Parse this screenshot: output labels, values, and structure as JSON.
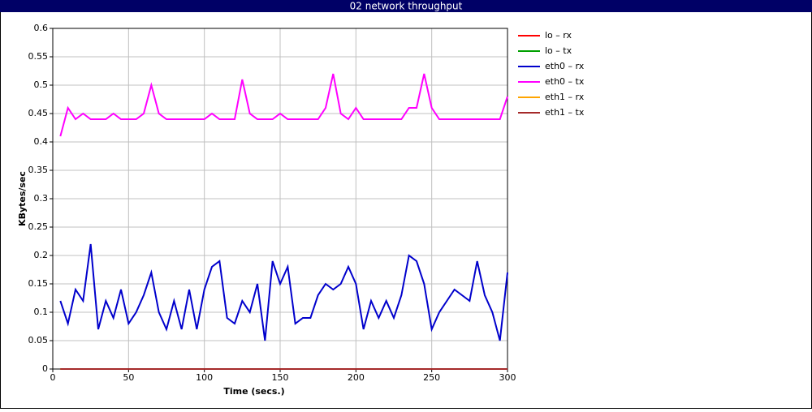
{
  "chart_data": {
    "type": "line",
    "title": "02 network throughput",
    "x_label": "Time (secs.)",
    "y_label": "KBytes/sec",
    "x": [
      5,
      10,
      15,
      20,
      25,
      30,
      35,
      40,
      45,
      50,
      55,
      60,
      65,
      70,
      75,
      80,
      85,
      90,
      95,
      100,
      105,
      110,
      115,
      120,
      125,
      130,
      135,
      140,
      145,
      150,
      155,
      160,
      165,
      170,
      175,
      180,
      185,
      190,
      195,
      200,
      205,
      210,
      215,
      220,
      225,
      230,
      235,
      240,
      245,
      250,
      255,
      260,
      265,
      270,
      275,
      280,
      285,
      290,
      295,
      300
    ],
    "xlim": [
      0,
      300
    ],
    "xticks": [
      0,
      50,
      100,
      150,
      200,
      250,
      300
    ],
    "ylim": [
      0,
      0.6
    ],
    "yticks": [
      0,
      0.05,
      0.1,
      0.15,
      0.2,
      0.25,
      0.3,
      0.35,
      0.4,
      0.45,
      0.5,
      0.55,
      0.6
    ],
    "grid": true,
    "series": [
      {
        "name": "lo – rx",
        "color": "#ff0000",
        "values": [
          0,
          0,
          0,
          0,
          0,
          0,
          0,
          0,
          0,
          0,
          0,
          0,
          0,
          0,
          0,
          0,
          0,
          0,
          0,
          0,
          0,
          0,
          0,
          0,
          0,
          0,
          0,
          0,
          0,
          0,
          0,
          0,
          0,
          0,
          0,
          0,
          0,
          0,
          0,
          0,
          0,
          0,
          0,
          0,
          0,
          0,
          0,
          0,
          0,
          0,
          0,
          0,
          0,
          0,
          0,
          0,
          0,
          0,
          0,
          0
        ]
      },
      {
        "name": "lo – tx",
        "color": "#00a000",
        "values": [
          0,
          0,
          0,
          0,
          0,
          0,
          0,
          0,
          0,
          0,
          0,
          0,
          0,
          0,
          0,
          0,
          0,
          0,
          0,
          0,
          0,
          0,
          0,
          0,
          0,
          0,
          0,
          0,
          0,
          0,
          0,
          0,
          0,
          0,
          0,
          0,
          0,
          0,
          0,
          0,
          0,
          0,
          0,
          0,
          0,
          0,
          0,
          0,
          0,
          0,
          0,
          0,
          0,
          0,
          0,
          0,
          0,
          0,
          0,
          0
        ]
      },
      {
        "name": "eth0 – rx",
        "color": "#0000cc",
        "values": [
          0.12,
          0.08,
          0.14,
          0.12,
          0.22,
          0.07,
          0.12,
          0.09,
          0.14,
          0.08,
          0.1,
          0.13,
          0.17,
          0.1,
          0.07,
          0.12,
          0.07,
          0.14,
          0.07,
          0.14,
          0.18,
          0.19,
          0.09,
          0.08,
          0.12,
          0.1,
          0.15,
          0.05,
          0.19,
          0.15,
          0.18,
          0.08,
          0.09,
          0.09,
          0.13,
          0.15,
          0.14,
          0.15,
          0.18,
          0.15,
          0.07,
          0.12,
          0.09,
          0.12,
          0.09,
          0.13,
          0.2,
          0.19,
          0.15,
          0.07,
          0.1,
          0.12,
          0.14,
          0.13,
          0.12,
          0.19,
          0.13,
          0.1,
          0.05,
          0.17
        ]
      },
      {
        "name": "eth0 – tx",
        "color": "#ff00ff",
        "values": [
          0.41,
          0.46,
          0.44,
          0.45,
          0.44,
          0.44,
          0.44,
          0.45,
          0.44,
          0.44,
          0.44,
          0.45,
          0.5,
          0.45,
          0.44,
          0.44,
          0.44,
          0.44,
          0.44,
          0.44,
          0.45,
          0.44,
          0.44,
          0.44,
          0.51,
          0.45,
          0.44,
          0.44,
          0.44,
          0.45,
          0.44,
          0.44,
          0.44,
          0.44,
          0.44,
          0.46,
          0.52,
          0.45,
          0.44,
          0.46,
          0.44,
          0.44,
          0.44,
          0.44,
          0.44,
          0.44,
          0.46,
          0.46,
          0.52,
          0.46,
          0.44,
          0.44,
          0.44,
          0.44,
          0.44,
          0.44,
          0.44,
          0.44,
          0.44,
          0.48
        ]
      },
      {
        "name": "eth1 – rx",
        "color": "#ffa500",
        "values": [
          0,
          0,
          0,
          0,
          0,
          0,
          0,
          0,
          0,
          0,
          0,
          0,
          0,
          0,
          0,
          0,
          0,
          0,
          0,
          0,
          0,
          0,
          0,
          0,
          0,
          0,
          0,
          0,
          0,
          0,
          0,
          0,
          0,
          0,
          0,
          0,
          0,
          0,
          0,
          0,
          0,
          0,
          0,
          0,
          0,
          0,
          0,
          0,
          0,
          0,
          0,
          0,
          0,
          0,
          0,
          0,
          0,
          0,
          0,
          0
        ]
      },
      {
        "name": "eth1 – tx",
        "color": "#a52a2a",
        "values": [
          0,
          0,
          0,
          0,
          0,
          0,
          0,
          0,
          0,
          0,
          0,
          0,
          0,
          0,
          0,
          0,
          0,
          0,
          0,
          0,
          0,
          0,
          0,
          0,
          0,
          0,
          0,
          0,
          0,
          0,
          0,
          0,
          0,
          0,
          0,
          0,
          0,
          0,
          0,
          0,
          0,
          0,
          0,
          0,
          0,
          0,
          0,
          0,
          0,
          0,
          0,
          0,
          0,
          0,
          0,
          0,
          0,
          0,
          0,
          0
        ]
      }
    ]
  }
}
